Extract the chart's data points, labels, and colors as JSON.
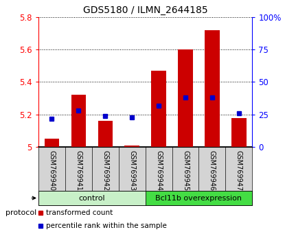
{
  "title": "GDS5180 / ILMN_2644185",
  "samples": [
    "GSM769940",
    "GSM769941",
    "GSM769942",
    "GSM769943",
    "GSM769944",
    "GSM769945",
    "GSM769946",
    "GSM769947"
  ],
  "transformed_counts": [
    5.05,
    5.32,
    5.16,
    5.01,
    5.47,
    5.6,
    5.72,
    5.18
  ],
  "percentile_ranks": [
    22,
    28,
    24,
    23,
    32,
    38,
    38,
    26
  ],
  "ylim_left": [
    5.0,
    5.8
  ],
  "ylim_right": [
    0,
    100
  ],
  "yticks_left": [
    5.0,
    5.2,
    5.4,
    5.6,
    5.8
  ],
  "ytick_labels_left": [
    "5",
    "5.2",
    "5.4",
    "5.6",
    "5.8"
  ],
  "yticks_right": [
    0,
    25,
    50,
    75,
    100
  ],
  "ytick_labels_right": [
    "0",
    "25",
    "50",
    "75",
    "100%"
  ],
  "bar_color": "#cc0000",
  "percentile_color": "#0000cc",
  "bar_width": 0.55,
  "group_control_color": "#c8f0c8",
  "group_bcl_color": "#44dd44",
  "sample_bg_color": "#d4d4d4",
  "legend_items": [
    {
      "label": "transformed count",
      "color": "#cc0000"
    },
    {
      "label": "percentile rank within the sample",
      "color": "#0000cc"
    }
  ]
}
